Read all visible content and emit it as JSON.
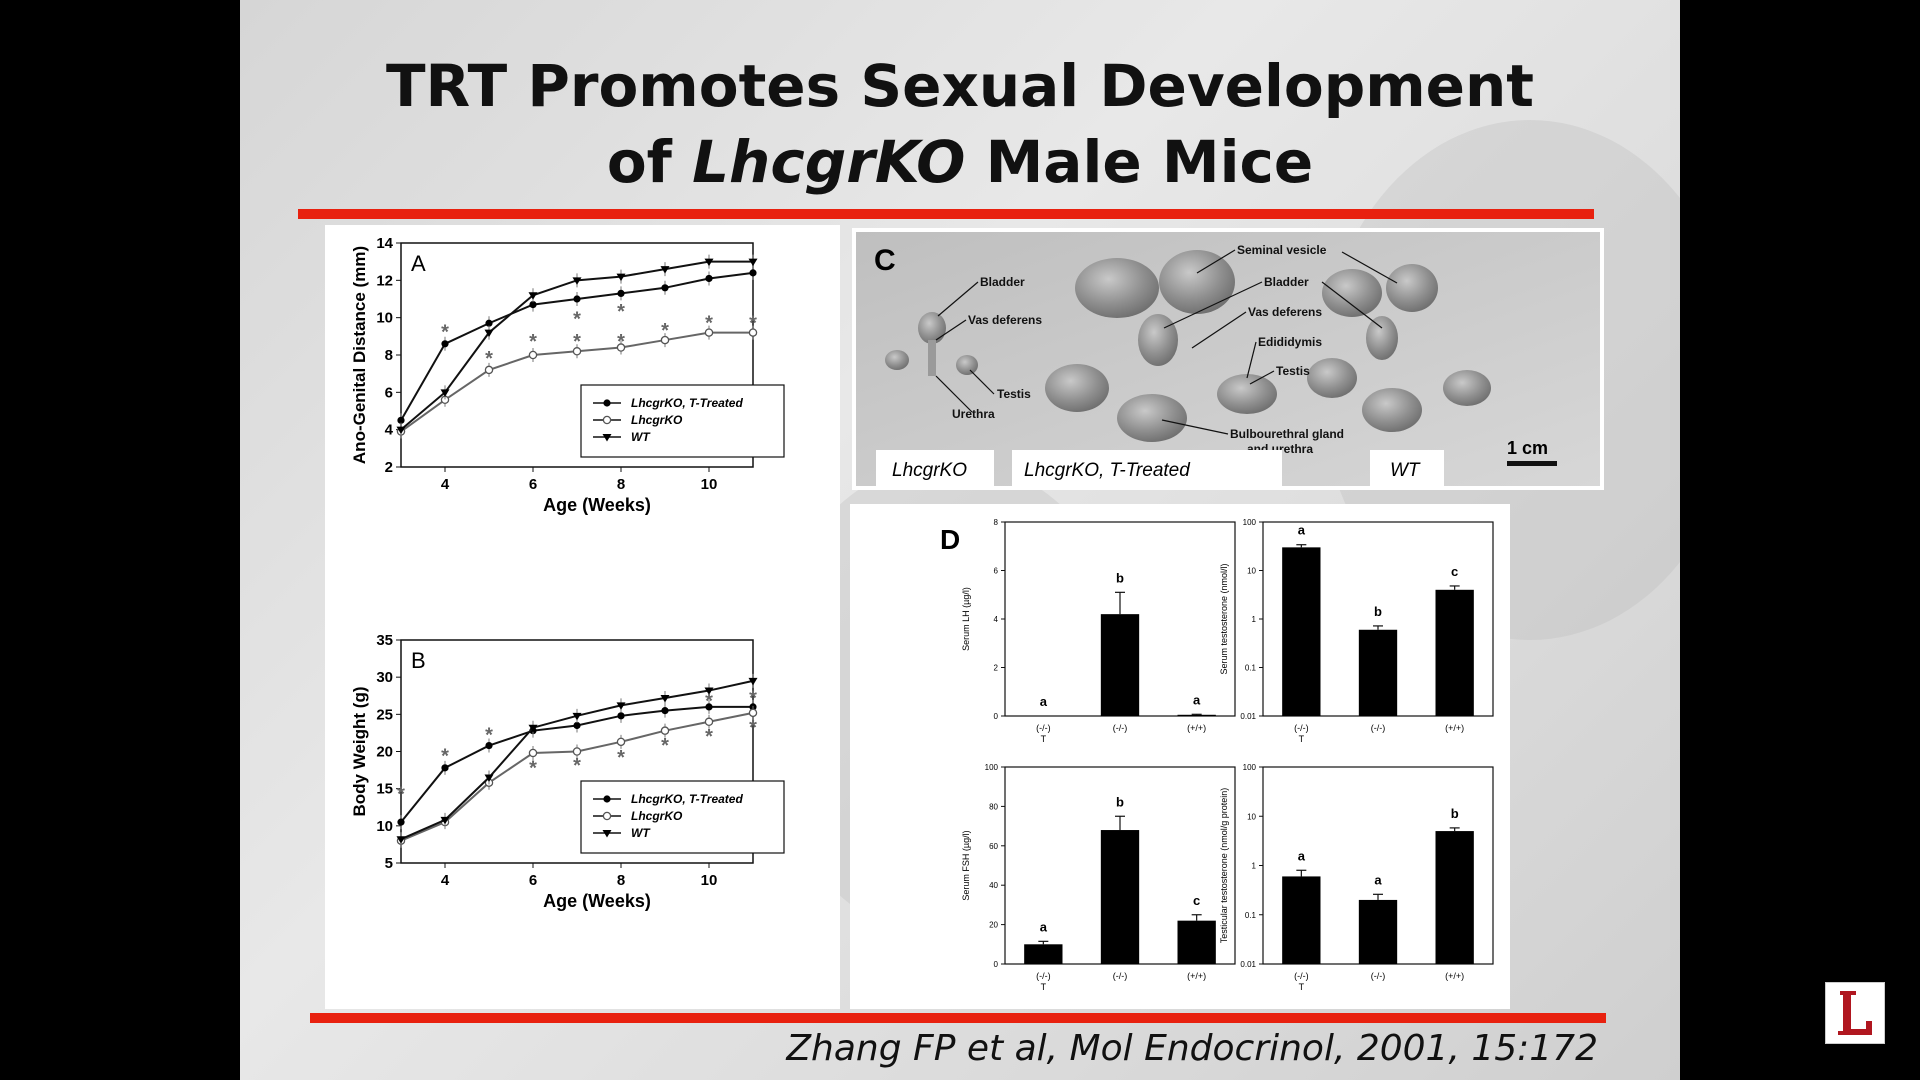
{
  "slide": {
    "title_prefix": "TRT Promotes Sexual Development",
    "title_line2_pre": "of ",
    "title_line2_italic": "LhcgrKO",
    "title_line2_post": " Male Mice",
    "citation": "Zhang FP et al, Mol Endocrinol, 2001, 15:172"
  },
  "colors": {
    "accent_rule": "#e8210f",
    "bar": "#000000",
    "background": "#000000"
  },
  "panel_c": {
    "letter": "C",
    "labels": [
      "Bladder",
      "Vas deferens",
      "Testis",
      "Urethra",
      "Seminal vesicle",
      "Bladder",
      "Vas deferens",
      "Edididymis",
      "Testis",
      "Bulbourethral gland",
      "and urethra"
    ],
    "scale": "1 cm",
    "groups": [
      "LhcgrKO",
      "LhcgrKO, T-Treated",
      "WT"
    ]
  },
  "chart_data": [
    {
      "id": "A",
      "type": "line",
      "panel_letter": "A",
      "xlabel": "Age (Weeks)",
      "ylabel": "Ano-Genital Distance (mm)",
      "xlim": [
        3,
        11
      ],
      "ylim": [
        2,
        14
      ],
      "x_ticks": [
        4,
        6,
        8,
        10
      ],
      "y_ticks": [
        2,
        4,
        6,
        8,
        10,
        12,
        14
      ],
      "x": [
        3,
        4,
        5,
        6,
        7,
        8,
        9,
        10,
        11
      ],
      "series": [
        {
          "name": "LhcgrKO, T-Treated",
          "marker": "circle-filled",
          "values": [
            4.5,
            8.6,
            9.7,
            10.7,
            11.0,
            11.3,
            11.6,
            12.1,
            12.4
          ]
        },
        {
          "name": "LhcgrKO",
          "marker": "circle-open",
          "values": [
            3.9,
            5.6,
            7.2,
            8.0,
            8.2,
            8.4,
            8.8,
            9.2,
            9.2
          ]
        },
        {
          "name": "WT",
          "marker": "triangle-filled",
          "values": [
            4.0,
            6.0,
            9.2,
            11.2,
            12.0,
            12.2,
            12.6,
            13.0,
            13.0
          ]
        }
      ],
      "asterisks": [
        {
          "x": 4,
          "y": 9.3
        },
        {
          "x": 5,
          "y": 7.9
        },
        {
          "x": 6,
          "y": 8.8
        },
        {
          "x": 7,
          "y": 8.8
        },
        {
          "x": 7,
          "y": 10.0
        },
        {
          "x": 8,
          "y": 8.8
        },
        {
          "x": 8,
          "y": 10.4
        },
        {
          "x": 9,
          "y": 9.4
        },
        {
          "x": 10,
          "y": 9.8
        },
        {
          "x": 11,
          "y": 9.8
        }
      ]
    },
    {
      "id": "B",
      "type": "line",
      "panel_letter": "B",
      "xlabel": "Age (Weeks)",
      "ylabel": "Body Weight (g)",
      "xlim": [
        3,
        11
      ],
      "ylim": [
        5,
        35
      ],
      "x_ticks": [
        4,
        6,
        8,
        10
      ],
      "y_ticks": [
        5,
        10,
        15,
        20,
        25,
        30,
        35
      ],
      "x": [
        3,
        4,
        5,
        6,
        7,
        8,
        9,
        10,
        11
      ],
      "series": [
        {
          "name": "LhcgrKO, T-Treated",
          "marker": "circle-filled",
          "values": [
            10.5,
            17.8,
            20.8,
            22.8,
            23.5,
            24.8,
            25.5,
            26.0,
            26.0
          ]
        },
        {
          "name": "LhcgrKO",
          "marker": "circle-open",
          "values": [
            8.0,
            10.5,
            15.8,
            19.8,
            20.0,
            21.3,
            22.8,
            24.0,
            25.2
          ]
        },
        {
          "name": "WT",
          "marker": "triangle-filled",
          "values": [
            8.2,
            10.8,
            16.5,
            23.2,
            24.8,
            26.2,
            27.2,
            28.2,
            29.5
          ]
        }
      ],
      "asterisks": [
        {
          "x": 3,
          "y": 14.5
        },
        {
          "x": 4,
          "y": 19.6
        },
        {
          "x": 5,
          "y": 22.4
        },
        {
          "x": 6,
          "y": 18.0
        },
        {
          "x": 7,
          "y": 18.3
        },
        {
          "x": 8,
          "y": 19.4
        },
        {
          "x": 9,
          "y": 21.0
        },
        {
          "x": 10,
          "y": 22.2
        },
        {
          "x": 10,
          "y": 27.0
        },
        {
          "x": 11,
          "y": 23.4
        },
        {
          "x": 11,
          "y": 27.4
        }
      ]
    },
    {
      "id": "D1",
      "type": "bar",
      "panel_letter": "D",
      "ylabel": "Serum LH (µg/l)",
      "ylim": [
        0,
        8
      ],
      "y_ticks": [
        0,
        2,
        4,
        6,
        8
      ],
      "scale": "linear",
      "categories": [
        [
          "(-/-)",
          "T"
        ],
        [
          "(-/-)"
        ],
        [
          "(+/+)"
        ]
      ],
      "values": [
        0,
        4.2,
        0.05
      ],
      "errors": [
        0,
        0.9,
        0.02
      ],
      "letters": [
        "a",
        "b",
        "a"
      ]
    },
    {
      "id": "D2",
      "type": "bar",
      "ylabel": "Serum testosterone (nmol/l)",
      "ylim": [
        0.01,
        100
      ],
      "y_ticks": [
        0.01,
        0.1,
        1,
        10,
        100
      ],
      "scale": "log",
      "categories": [
        [
          "(-/-)",
          "T"
        ],
        [
          "(-/-)"
        ],
        [
          "(+/+)"
        ]
      ],
      "values": [
        30,
        0.6,
        4.0
      ],
      "errors": [
        4,
        0.12,
        0.8
      ],
      "letters": [
        "a",
        "b",
        "c"
      ]
    },
    {
      "id": "D3",
      "type": "bar",
      "ylabel": "Serum FSH (µg/l)",
      "ylim": [
        0,
        100
      ],
      "y_ticks": [
        0,
        20,
        40,
        60,
        80,
        100
      ],
      "scale": "linear",
      "categories": [
        [
          "(-/-)",
          "T"
        ],
        [
          "(-/-)"
        ],
        [
          "(+/+)"
        ]
      ],
      "values": [
        10,
        68,
        22
      ],
      "errors": [
        1.5,
        7,
        3
      ],
      "letters": [
        "a",
        "b",
        "c"
      ]
    },
    {
      "id": "D4",
      "type": "bar",
      "ylabel": "Testicular testosterone (nmol/g protein)",
      "ylim": [
        0.01,
        100
      ],
      "y_ticks": [
        0.01,
        0.1,
        1,
        10,
        100
      ],
      "scale": "log",
      "categories": [
        [
          "(-/-)",
          "T"
        ],
        [
          "(-/-)"
        ],
        [
          "(+/+)"
        ]
      ],
      "values": [
        0.6,
        0.2,
        5.0
      ],
      "errors": [
        0.2,
        0.06,
        0.8
      ],
      "letters": [
        "a",
        "a",
        "b"
      ]
    }
  ]
}
